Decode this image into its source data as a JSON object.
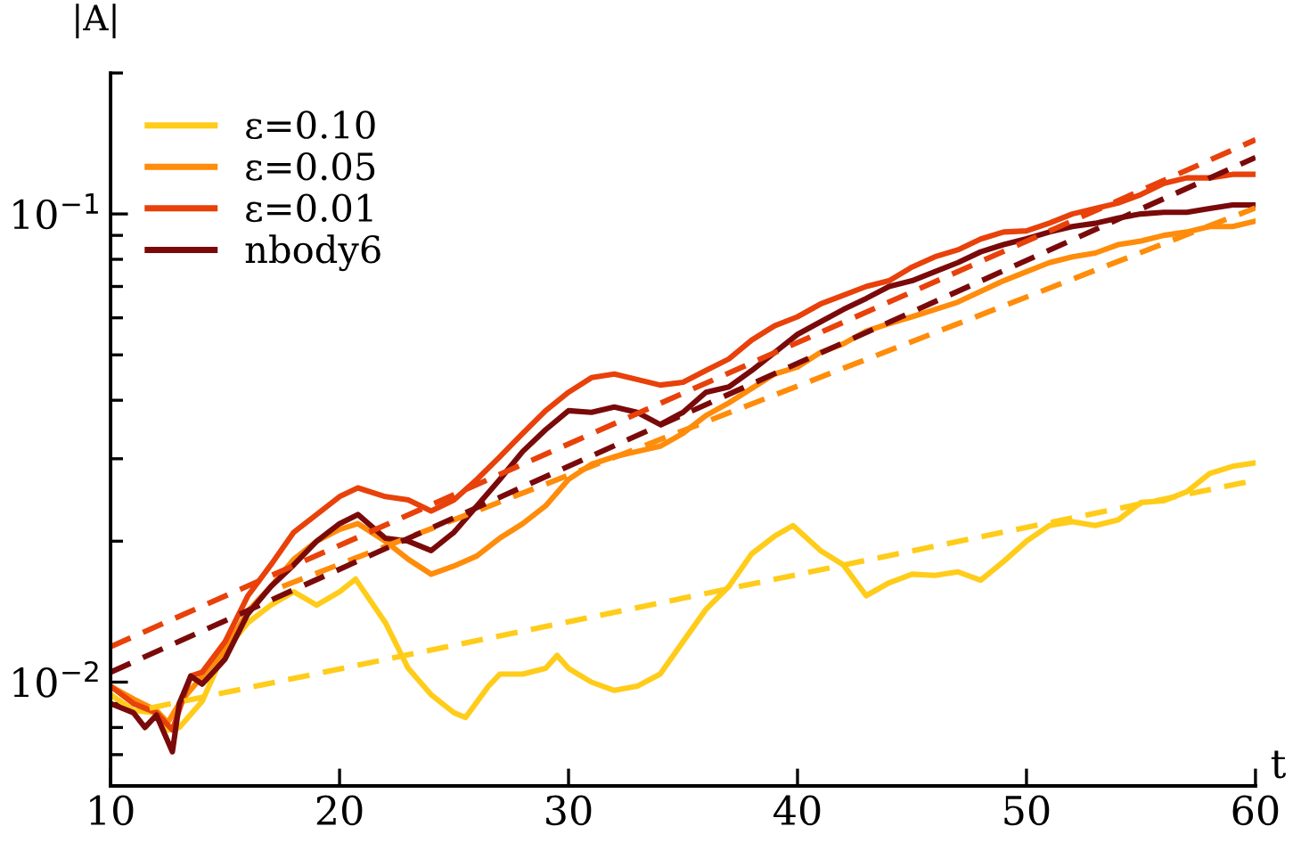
{
  "chart_data": {
    "type": "line",
    "xlabel": "t",
    "ylabel": "|A|",
    "log": "y",
    "grid": false,
    "legend": "top left",
    "line_style": "solid",
    "marker": "none",
    "xlim": [
      10,
      60
    ],
    "xticks": [
      10,
      20,
      30,
      40,
      50,
      60
    ],
    "ylim": [
      0.006,
      0.2
    ],
    "yticks": [
      {
        "value": 0.01,
        "label": "10$^{−2}$"
      },
      {
        "value": 0.1,
        "label": "10$^{−1}$"
      }
    ],
    "series": [
      {
        "name": "ε=0.10",
        "color": "#ffcc1a",
        "x": [
          10,
          11,
          12,
          12.5,
          13,
          14,
          15,
          16,
          17,
          18,
          19,
          20,
          20.7,
          22,
          23,
          24,
          25,
          25.5,
          26.5,
          27,
          28,
          29,
          29.5,
          30,
          31,
          32,
          33,
          34,
          35,
          36,
          37,
          38,
          39,
          39.8,
          41,
          42,
          43,
          44,
          45,
          46,
          47,
          48,
          49,
          50,
          51,
          52,
          53,
          54,
          55,
          56,
          57,
          58,
          59,
          60
        ],
        "values": [
          0.0094,
          0.0087,
          0.0086,
          0.0079,
          0.008,
          0.0091,
          0.0117,
          0.0134,
          0.0146,
          0.0156,
          0.0146,
          0.0156,
          0.0166,
          0.0134,
          0.0107,
          0.0094,
          0.0086,
          0.0084,
          0.0098,
          0.0104,
          0.0104,
          0.0107,
          0.0114,
          0.0107,
          0.01,
          0.0096,
          0.0098,
          0.0104,
          0.0122,
          0.0143,
          0.016,
          0.0188,
          0.0205,
          0.0216,
          0.0191,
          0.0178,
          0.0153,
          0.0163,
          0.017,
          0.0169,
          0.0172,
          0.0165,
          0.0181,
          0.02,
          0.0216,
          0.022,
          0.0216,
          0.0222,
          0.0242,
          0.0244,
          0.0255,
          0.0279,
          0.0289,
          0.0294
        ]
      },
      {
        "name": "ε=0.05",
        "color": "#ff8c0a",
        "x": [
          10,
          11,
          12,
          12.5,
          13,
          14,
          15,
          16,
          17,
          18,
          19,
          20,
          20.8,
          22,
          23,
          24,
          25,
          26,
          27,
          28,
          29,
          30,
          31,
          32,
          33,
          34,
          35,
          36,
          37,
          38,
          39,
          40,
          41,
          42,
          43,
          44,
          45,
          46,
          47,
          48,
          49,
          50,
          51,
          52,
          53,
          54,
          55,
          56,
          57,
          58,
          59,
          60
        ],
        "values": [
          0.0098,
          0.0092,
          0.0087,
          0.0082,
          0.009,
          0.0103,
          0.0117,
          0.0142,
          0.016,
          0.0183,
          0.02,
          0.0212,
          0.0218,
          0.02,
          0.0183,
          0.017,
          0.0177,
          0.0186,
          0.0203,
          0.0218,
          0.0238,
          0.0271,
          0.0292,
          0.0303,
          0.0311,
          0.0319,
          0.034,
          0.0371,
          0.0395,
          0.0424,
          0.0455,
          0.0471,
          0.0506,
          0.0528,
          0.0562,
          0.0583,
          0.0603,
          0.0625,
          0.0648,
          0.0683,
          0.072,
          0.0753,
          0.0787,
          0.081,
          0.0825,
          0.086,
          0.0875,
          0.09,
          0.0915,
          0.094,
          0.094,
          0.0965
        ]
      },
      {
        "name": "ε=0.01",
        "color": "#e8410a",
        "x": [
          10,
          11,
          12,
          12.7,
          13.5,
          14,
          15,
          16,
          17,
          18,
          19,
          20,
          20.8,
          22,
          23,
          24,
          25,
          26,
          27,
          28,
          29,
          30,
          31,
          32,
          33,
          34,
          35,
          36,
          37,
          38,
          39,
          40,
          41,
          42,
          43,
          44,
          45,
          46,
          47,
          48,
          49,
          50,
          51,
          52,
          53,
          54,
          55,
          56,
          57,
          58,
          59,
          60
        ],
        "values": [
          0.0098,
          0.009,
          0.0086,
          0.0079,
          0.0103,
          0.0105,
          0.0122,
          0.0153,
          0.0178,
          0.0209,
          0.0228,
          0.0249,
          0.026,
          0.0249,
          0.0245,
          0.0232,
          0.0245,
          0.0271,
          0.0303,
          0.034,
          0.038,
          0.0416,
          0.0447,
          0.0455,
          0.0443,
          0.0431,
          0.0437,
          0.0463,
          0.049,
          0.0538,
          0.0577,
          0.0603,
          0.0642,
          0.067,
          0.07,
          0.072,
          0.077,
          0.081,
          0.0838,
          0.0884,
          0.0915,
          0.092,
          0.0956,
          0.1,
          0.1027,
          0.1055,
          0.11,
          0.1162,
          0.1194,
          0.1194,
          0.1215,
          0.1215
        ]
      },
      {
        "name": "nbody6",
        "color": "#7a0a0a",
        "x": [
          10,
          11,
          11.5,
          12,
          12.7,
          13,
          13.5,
          14,
          15,
          16,
          17,
          18,
          19,
          20,
          20.8,
          22,
          23,
          24,
          25,
          26,
          27,
          28,
          29,
          30,
          31,
          32,
          33,
          34,
          35,
          36,
          37,
          38,
          39,
          40,
          41,
          42,
          43,
          44,
          45,
          46,
          47,
          48,
          49,
          50,
          51,
          52,
          53,
          54,
          55,
          56,
          57,
          58,
          59,
          60
        ],
        "values": [
          0.009,
          0.0086,
          0.008,
          0.0085,
          0.0071,
          0.009,
          0.0103,
          0.0099,
          0.0112,
          0.014,
          0.016,
          0.0178,
          0.02,
          0.0218,
          0.0228,
          0.0203,
          0.02,
          0.0191,
          0.0209,
          0.0238,
          0.0271,
          0.0311,
          0.0346,
          0.038,
          0.0377,
          0.0387,
          0.0377,
          0.0355,
          0.0377,
          0.0416,
          0.0427,
          0.0463,
          0.0506,
          0.0553,
          0.0588,
          0.0625,
          0.066,
          0.07,
          0.072,
          0.0753,
          0.0787,
          0.083,
          0.086,
          0.0885,
          0.0915,
          0.094,
          0.0955,
          0.098,
          0.1,
          0.1008,
          0.1008,
          0.1027,
          0.1045,
          0.1045
        ]
      },
      {
        "color": "#ffcc1a",
        "line_style": "dashed",
        "x": [
          11.7,
          60
        ],
        "values": [
          0.0088,
          0.027
        ]
      },
      {
        "color": "#ff8c0a",
        "line_style": "dashed",
        "x": [
          17.5,
          60
        ],
        "values": [
          0.016,
          0.103
        ]
      },
      {
        "color": "#e8410a",
        "line_style": "dashed",
        "x": [
          10,
          60
        ],
        "values": [
          0.0119,
          0.144
        ]
      },
      {
        "color": "#7a0a0a",
        "line_style": "dashed",
        "x": [
          10,
          60
        ],
        "values": [
          0.0105,
          0.132
        ]
      }
    ]
  }
}
